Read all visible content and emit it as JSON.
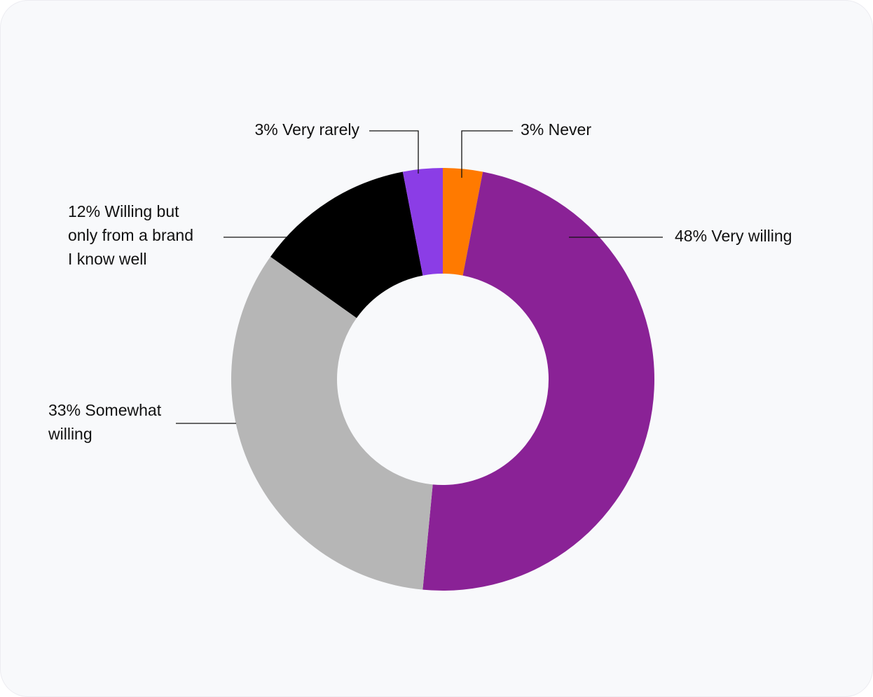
{
  "chart_data": {
    "type": "pie",
    "variant": "donut",
    "title": "",
    "slices": [
      {
        "label": "Never",
        "value": 3,
        "display": "3% Never",
        "color": "#FF7A00"
      },
      {
        "label": "Very willing",
        "value": 48,
        "display": "48% Very willing",
        "color": "#8A2296"
      },
      {
        "label": "Somewhat willing",
        "value": 33,
        "display": "33% Somewhat willing",
        "color": "#B6B6B6"
      },
      {
        "label": "Willing but only from a brand I know well",
        "value": 12,
        "display": "12% Willing but only from a brand I know well",
        "color": "#000000"
      },
      {
        "label": "Very rarely",
        "value": 3,
        "display": "3% Very rarely",
        "color": "#8B3DE6"
      }
    ],
    "legend": "none"
  }
}
